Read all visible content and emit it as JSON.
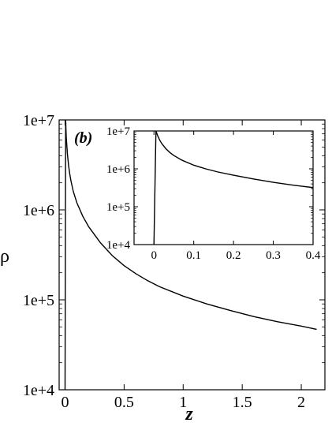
{
  "chart_data": [
    {
      "type": "line",
      "panel_label": "(b)",
      "xlabel": "z",
      "ylabel": "ρ",
      "xlim": [
        -0.05,
        2.2
      ],
      "ylim": [
        10000,
        10000000
      ],
      "yscale": "log",
      "xticks": [
        0,
        0.5,
        1,
        1.5,
        2
      ],
      "xtick_labels": [
        "0",
        "0.5",
        "1",
        "1.5",
        "2"
      ],
      "yticks": [
        10000,
        100000,
        1000000,
        10000000
      ],
      "ytick_labels": [
        "1e+4",
        "1e+5",
        "1e+6",
        "1e+7"
      ],
      "grid": false,
      "series": [
        {
          "x": [
            0.0,
            0.005,
            0.01,
            0.02,
            0.03,
            0.04,
            0.05,
            0.07,
            0.1,
            0.15,
            0.2,
            0.3,
            0.4,
            0.5,
            0.6,
            0.7,
            0.8,
            1.0,
            1.2,
            1.4,
            1.6,
            1.8,
            2.0,
            2.13
          ],
          "y": [
            10000,
            10000000,
            6500000,
            4200000,
            3100000,
            2500000,
            2100000,
            1600000,
            1200000,
            850000,
            650000,
            430000,
            310000,
            240000,
            195000,
            163000,
            140000,
            110000,
            90000,
            76000,
            65000,
            57000,
            51000,
            47000
          ]
        }
      ]
    },
    {
      "type": "line",
      "role": "inset",
      "xlim": [
        -0.05,
        0.4
      ],
      "ylim": [
        10000,
        10000000
      ],
      "yscale": "log",
      "xticks": [
        0,
        0.1,
        0.2,
        0.3,
        0.4
      ],
      "xtick_labels": [
        "0",
        "0.1",
        "0.2",
        "0.3",
        "0.4"
      ],
      "yticks": [
        10000,
        100000,
        1000000,
        10000000
      ],
      "ytick_labels": [
        "1e+4",
        "1e+5",
        "1e+6",
        "1e+7"
      ],
      "grid": false,
      "series": [
        {
          "x": [
            0.0,
            0.005,
            0.01,
            0.015,
            0.02,
            0.03,
            0.04,
            0.05,
            0.07,
            0.1,
            0.13,
            0.16,
            0.2,
            0.25,
            0.3,
            0.35,
            0.4
          ],
          "y": [
            10000,
            10000000,
            7200000,
            5600000,
            4600000,
            3400000,
            2700000,
            2250000,
            1700000,
            1250000,
            1000000,
            830000,
            680000,
            540000,
            440000,
            370000,
            320000
          ]
        }
      ]
    }
  ]
}
